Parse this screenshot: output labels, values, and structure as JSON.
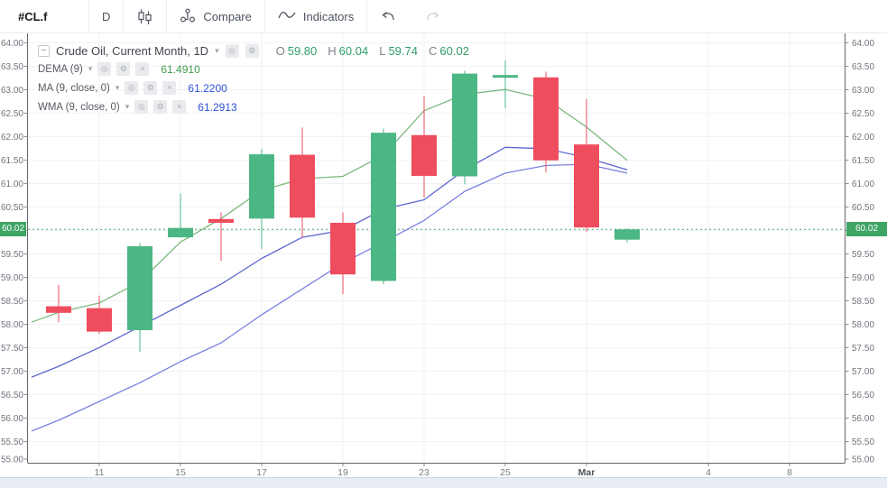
{
  "toolbar": {
    "symbol": "#CL.f",
    "interval": "D",
    "compare_label": "Compare",
    "indicators_label": "Indicators"
  },
  "legend": {
    "title": "Crude Oil, Current Month, 1D",
    "collapse_glyph": "−",
    "caret_glyph": "▾",
    "eye_glyph": "◎",
    "gear_glyph": "⚙",
    "close_glyph": "×",
    "ohlc": {
      "o_label": "O",
      "o": "59.80",
      "h_label": "H",
      "h": "60.04",
      "l_label": "L",
      "l": "59.74",
      "c_label": "C",
      "c": "60.02"
    },
    "indicators": [
      {
        "name": "DEMA (9)",
        "value": "61.4910",
        "value_color": "green"
      },
      {
        "name": "MA (9, close, 0)",
        "value": "61.2200",
        "value_color": "blue"
      },
      {
        "name": "WMA (9, close, 0)",
        "value": "61.2913",
        "value_color": "blue"
      }
    ]
  },
  "price_line": {
    "value": 60.02,
    "label": "60.02",
    "color": "#3da463"
  },
  "chart_data": {
    "type": "candlestick",
    "title": "Crude Oil, Current Month, 1D",
    "y_axis": {
      "min": 55.0,
      "max": 64.0,
      "step": 0.5
    },
    "x_labels": [
      {
        "text": "11",
        "slot": 1,
        "major": false
      },
      {
        "text": "15",
        "slot": 3,
        "major": false
      },
      {
        "text": "17",
        "slot": 5,
        "major": false
      },
      {
        "text": "19",
        "slot": 7,
        "major": false
      },
      {
        "text": "23",
        "slot": 9,
        "major": false
      },
      {
        "text": "25",
        "slot": 11,
        "major": false
      },
      {
        "text": "Mar",
        "slot": 13,
        "major": true
      },
      {
        "text": "4",
        "slot": 16,
        "major": false
      },
      {
        "text": "8",
        "slot": 18,
        "major": false
      }
    ],
    "candles": [
      {
        "o": 58.38,
        "h": 58.84,
        "l": 58.04,
        "c": 58.24
      },
      {
        "o": 58.34,
        "h": 58.61,
        "l": 57.79,
        "c": 57.84
      },
      {
        "o": 57.87,
        "h": 59.73,
        "l": 57.41,
        "c": 59.66
      },
      {
        "o": 59.85,
        "h": 60.79,
        "l": 59.84,
        "c": 60.05
      },
      {
        "o": 60.24,
        "h": 60.38,
        "l": 59.35,
        "c": 60.16
      },
      {
        "o": 60.25,
        "h": 61.73,
        "l": 59.6,
        "c": 61.62
      },
      {
        "o": 61.61,
        "h": 62.19,
        "l": 59.85,
        "c": 60.27
      },
      {
        "o": 60.16,
        "h": 60.38,
        "l": 58.64,
        "c": 59.06
      },
      {
        "o": 58.92,
        "h": 62.17,
        "l": 58.85,
        "c": 62.08
      },
      {
        "o": 62.03,
        "h": 62.86,
        "l": 60.7,
        "c": 61.16
      },
      {
        "o": 61.15,
        "h": 63.4,
        "l": 60.98,
        "c": 63.34
      },
      {
        "o": 63.3,
        "h": 63.62,
        "l": 62.6,
        "c": 63.31
      },
      {
        "o": 63.26,
        "h": 63.38,
        "l": 61.23,
        "c": 61.49
      },
      {
        "o": 61.83,
        "h": 62.8,
        "l": 59.97,
        "c": 60.06
      },
      {
        "o": 59.8,
        "h": 60.04,
        "l": 59.74,
        "c": 60.02
      }
    ],
    "up_color": "#4bb784",
    "down_color": "#ee4d5e",
    "series": [
      {
        "name": "MA (9, close, 0)",
        "color": "#7b81e0",
        "edge_value": 55.72,
        "values": [
          55.95,
          56.35,
          56.75,
          57.2,
          57.6,
          58.2,
          58.75,
          59.3,
          59.75,
          60.21,
          60.83,
          61.22,
          61.38,
          61.41,
          61.22
        ]
      },
      {
        "name": "WMA (9, close, 0)",
        "color": "#5d66cf",
        "edge_value": 56.87,
        "values": [
          57.1,
          57.5,
          57.95,
          58.4,
          58.85,
          59.4,
          59.85,
          60.0,
          60.45,
          60.65,
          61.29,
          61.77,
          61.74,
          61.55,
          61.29
        ]
      },
      {
        "name": "DEMA (9)",
        "color": "#7cb87e",
        "edge_value": 58.04,
        "values": [
          58.25,
          58.45,
          58.9,
          59.75,
          60.25,
          60.85,
          61.1,
          61.15,
          61.6,
          62.55,
          62.9,
          63.0,
          62.8,
          62.2,
          61.49
        ]
      }
    ],
    "last_price": 60.02,
    "grid": true,
    "legend_position": "top-left"
  }
}
